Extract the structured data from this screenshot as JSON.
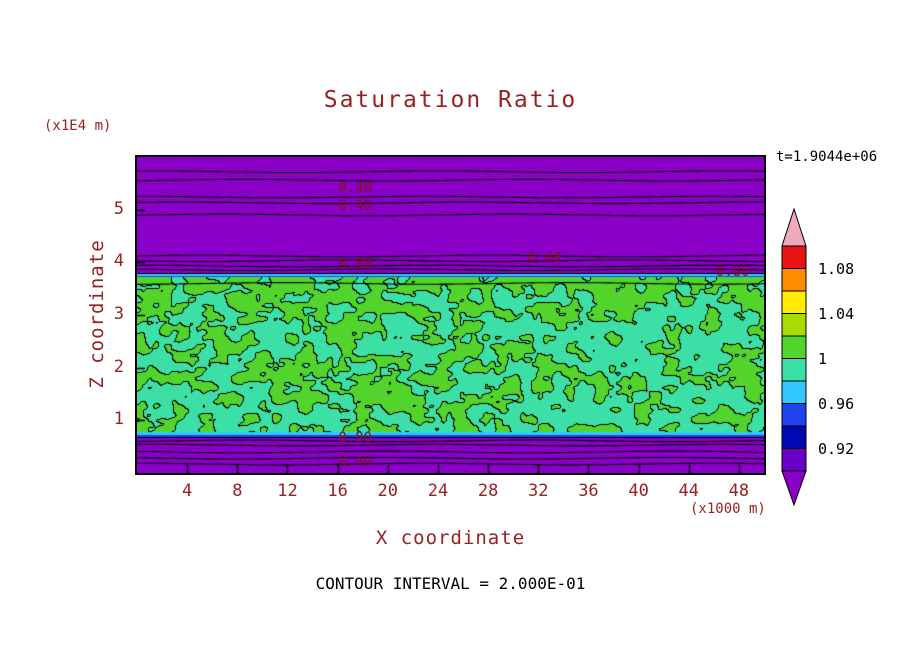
{
  "title": "Saturation Ratio",
  "time_annotation": "t=1.9044e+06",
  "footer": "CONTOUR INTERVAL = 2.000E-01",
  "x_axis": {
    "label": "X coordinate",
    "unit": "(x1000 m)"
  },
  "y_axis": {
    "label": "Z coordinate",
    "unit": "(x1E4 m)"
  },
  "colorbar": {
    "tick_labels": [
      "1.08",
      "1.04",
      "1",
      "0.96",
      "0.92"
    ],
    "segments": [
      "#e81414",
      "#ff8c00",
      "#ffec00",
      "#a6dc00",
      "#52d42c",
      "#3ce0a6",
      "#30c8ff",
      "#2042f0",
      "#0008b4",
      "#6a00c8"
    ],
    "over_arrow_color": "#f0a8bc",
    "under_arrow_color": "#8a00c8"
  },
  "palette": {
    "purple": "#8a00c8",
    "green": "#52d42c",
    "teal": "#3ce0a6",
    "cyan": "#30c8ff",
    "blue": "#2042f0",
    "text_red": "#992121",
    "black": "#000000"
  },
  "chart_data": {
    "type": "heatmap",
    "subtype": "filled contour plot of saturation ratio on X-Z cross-section",
    "title": "Saturation Ratio",
    "xlabel": "X coordinate",
    "ylabel": "Z coordinate",
    "x_unit": "(x1000 m)",
    "y_unit": "(x1E4 m)",
    "xlim": [
      0,
      50
    ],
    "ylim": [
      0,
      6
    ],
    "x_ticks": [
      4,
      8,
      12,
      16,
      20,
      24,
      28,
      32,
      36,
      40,
      44,
      48
    ],
    "y_ticks": [
      1,
      2,
      3,
      4,
      5
    ],
    "time_annotation": "t=1.9044e+06",
    "contour_interval": 0.2,
    "colorbar_levels_top_to_bottom": [
      1.08,
      1.04,
      1,
      0.96,
      0.92
    ],
    "mottle_y_range": [
      0.78,
      3.73
    ],
    "regions": [
      {
        "name": "upper unsaturated zone",
        "y_range": [
          3.85,
          6
        ],
        "color": "purple",
        "saturation_ratio": "< 0.4"
      },
      {
        "name": "upper transition stripe",
        "y_range": [
          3.73,
          3.85
        ],
        "color": "cyan/blue",
        "saturation_ratio": "0.92-0.96"
      },
      {
        "name": "mottled saturated zone",
        "y_range": [
          0.78,
          3.73
        ],
        "color": "green/teal mottle",
        "saturation_ratio": "0.96-1.04"
      },
      {
        "name": "lower transition stripe",
        "y_range": [
          0.66,
          0.78
        ],
        "color": "cyan/blue",
        "saturation_ratio": "0.92-0.96"
      },
      {
        "name": "lower unsaturated zone",
        "y_range": [
          0,
          0.66
        ],
        "color": "purple",
        "saturation_ratio": "< 0.4"
      }
    ],
    "horizontal_contours_y": [
      5.72,
      5.56,
      5.24,
      5.13,
      4.9,
      4.12,
      4.03,
      3.93,
      3.86,
      3.6,
      0.61,
      0.53,
      0.4,
      0.28,
      0.17
    ],
    "contour_line_labels": [
      {
        "text": "0.40",
        "x": 17.4,
        "y": 5.41
      },
      {
        "text": "0.40",
        "x": 17.4,
        "y": 5.07
      },
      {
        "text": "0.80",
        "x": 17.4,
        "y": 3.97
      },
      {
        "text": "0.40",
        "x": 32.5,
        "y": 4.08
      },
      {
        "text": "0.80",
        "x": 47.5,
        "y": 3.82
      },
      {
        "text": "0.80",
        "x": 17.4,
        "y": 0.67
      },
      {
        "text": "0.40",
        "x": 17.4,
        "y": 0.21
      }
    ]
  }
}
